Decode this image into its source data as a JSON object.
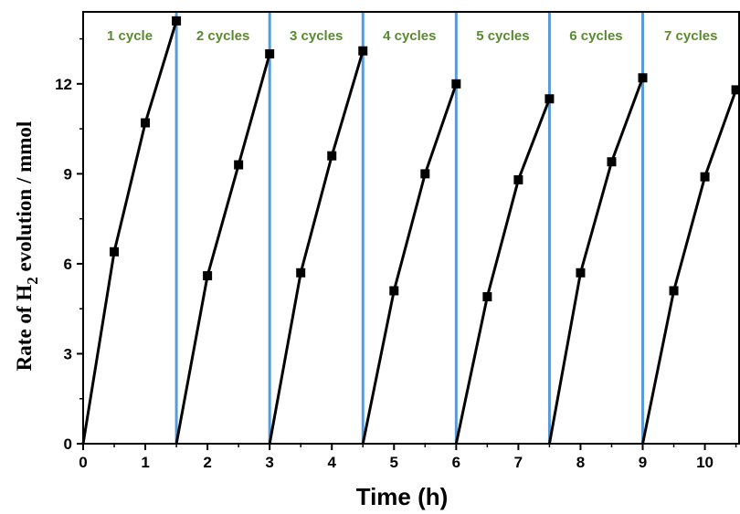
{
  "chart_data": {
    "type": "line",
    "xlabel": "Time (h)",
    "ylabel": {
      "prefix": "Rate of H",
      "subscript": "2",
      "suffix": " evolution / mmol"
    },
    "xlim": [
      0,
      10.55
    ],
    "ylim": [
      0,
      14.4
    ],
    "x_ticks": [
      0,
      1,
      2,
      3,
      4,
      5,
      6,
      7,
      8,
      9,
      10
    ],
    "y_ticks": [
      0,
      3,
      6,
      9,
      12
    ],
    "grid": false,
    "cycle_boundaries": [
      1.5,
      3,
      4.5,
      6,
      7.5,
      9
    ],
    "cycle_labels": [
      "1 cycle",
      "2 cycles",
      "3 cycles",
      "4 cycles",
      "5 cycles",
      "6 cycles",
      "7 cycles"
    ],
    "series": [
      {
        "points": [
          [
            0,
            0
          ],
          [
            0.5,
            6.4
          ],
          [
            1.0,
            10.7
          ],
          [
            1.5,
            14.1
          ]
        ]
      },
      {
        "points": [
          [
            1.5,
            0
          ],
          [
            2.0,
            5.6
          ],
          [
            2.5,
            9.3
          ],
          [
            3.0,
            13.0
          ]
        ]
      },
      {
        "points": [
          [
            3.0,
            0
          ],
          [
            3.5,
            5.7
          ],
          [
            4.0,
            9.6
          ],
          [
            4.5,
            13.1
          ]
        ]
      },
      {
        "points": [
          [
            4.5,
            0
          ],
          [
            5.0,
            5.1
          ],
          [
            5.5,
            9.0
          ],
          [
            6.0,
            12.0
          ]
        ]
      },
      {
        "points": [
          [
            6.0,
            0
          ],
          [
            6.5,
            4.9
          ],
          [
            7.0,
            8.8
          ],
          [
            7.5,
            11.5
          ]
        ]
      },
      {
        "points": [
          [
            7.5,
            0
          ],
          [
            8.0,
            5.7
          ],
          [
            8.5,
            9.4
          ],
          [
            9.0,
            12.2
          ]
        ]
      },
      {
        "points": [
          [
            9.0,
            0
          ],
          [
            9.5,
            5.1
          ],
          [
            10.0,
            8.9
          ],
          [
            10.5,
            11.8
          ]
        ]
      }
    ],
    "colors": {
      "series": "#000000",
      "cycle_lines": "#5b9bd5",
      "cycle_labels": "#5a8a2f",
      "axes": "#000000"
    }
  }
}
